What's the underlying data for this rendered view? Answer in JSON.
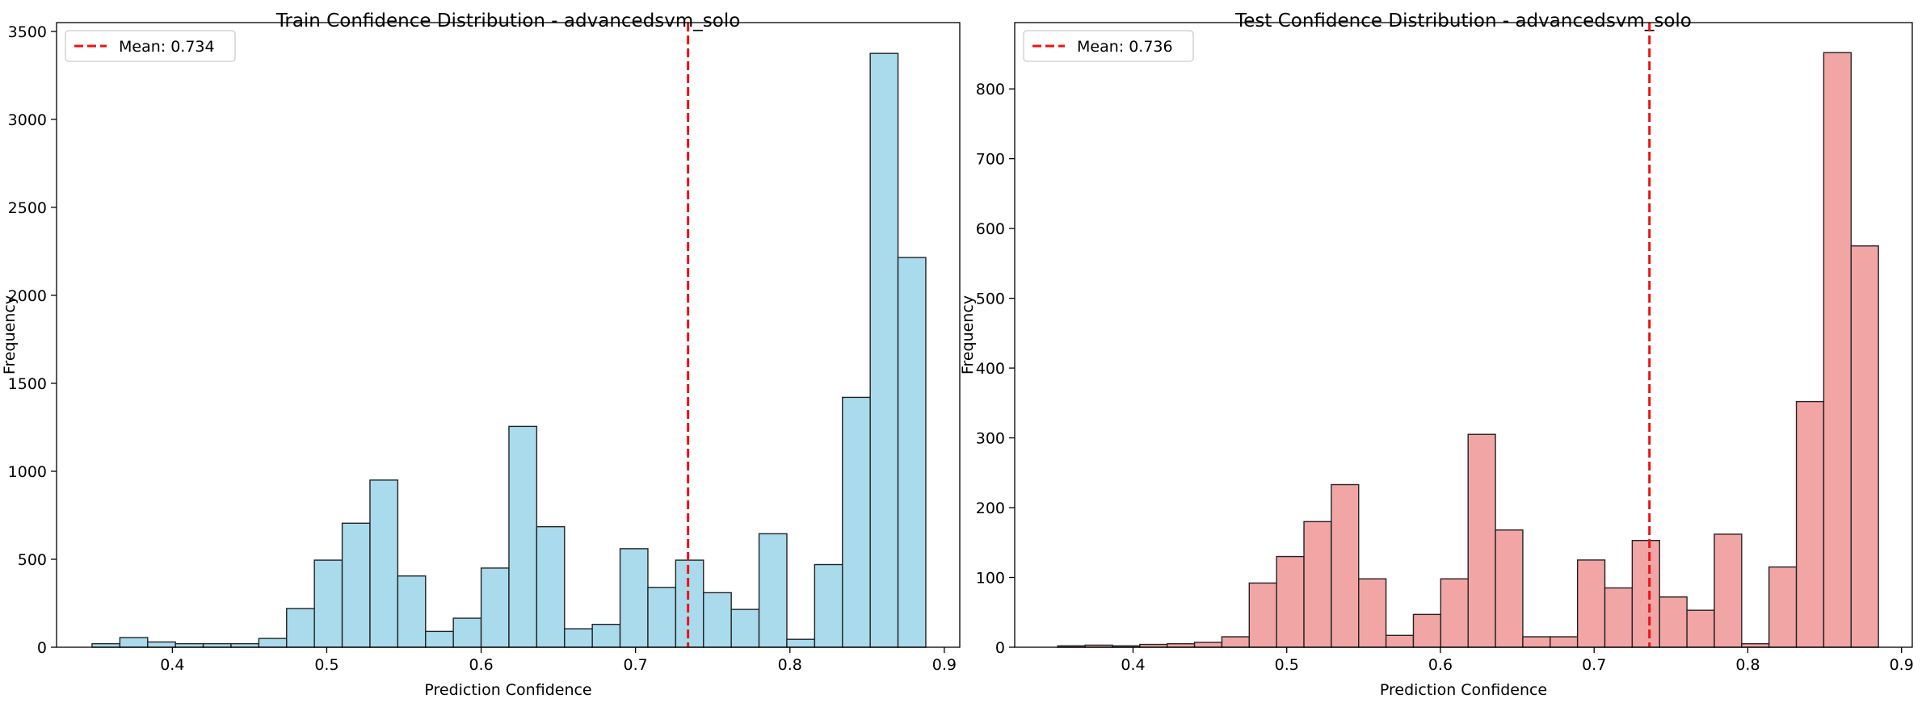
{
  "chart_data": [
    {
      "type": "bar",
      "title": "Train Confidence Distribution - advancedsvm_solo",
      "xlabel": "Prediction Confidence",
      "ylabel": "Frequency",
      "xlim": [
        0.325,
        0.91
      ],
      "ylim": [
        0,
        3550
      ],
      "xticks": [
        "0.4",
        "0.5",
        "0.6",
        "0.7",
        "0.8",
        "0.9"
      ],
      "yticks": [
        "0",
        "500",
        "1000",
        "1500",
        "2000",
        "2500",
        "3000",
        "3500"
      ],
      "bin_start": 0.348,
      "bin_width": 0.018,
      "values": [
        20,
        55,
        30,
        20,
        20,
        20,
        50,
        220,
        495,
        705,
        950,
        405,
        90,
        165,
        450,
        1255,
        685,
        105,
        130,
        560,
        340,
        495,
        310,
        215,
        645,
        45,
        470,
        1420,
        3375,
        2215
      ],
      "mean_line": {
        "value": 0.734,
        "label": "Mean: 0.734",
        "color": "#ee1111"
      },
      "bar_color": "#a9dbed",
      "edge_color": "#222222",
      "grid": false,
      "legend": "top-left"
    },
    {
      "type": "bar",
      "title": "Test Confidence Distribution - advancedsvm_solo",
      "xlabel": "Prediction Confidence",
      "ylabel": "Frequency",
      "xlim": [
        0.323,
        0.907
      ],
      "ylim": [
        0,
        895
      ],
      "xticks": [
        "0.4",
        "0.5",
        "0.6",
        "0.7",
        "0.8",
        "0.9"
      ],
      "yticks": [
        "0",
        "100",
        "200",
        "300",
        "400",
        "500",
        "600",
        "700",
        "800"
      ],
      "bin_start": 0.351,
      "bin_width": 0.0178,
      "values": [
        2,
        3,
        2,
        4,
        5,
        7,
        15,
        92,
        130,
        180,
        233,
        98,
        17,
        47,
        98,
        305,
        168,
        15,
        15,
        125,
        85,
        153,
        72,
        53,
        162,
        5,
        115,
        352,
        852,
        575
      ],
      "mean_line": {
        "value": 0.736,
        "label": "Mean: 0.736",
        "color": "#ee1111"
      },
      "bar_color": "#f2a5a5",
      "edge_color": "#222222",
      "grid": false,
      "legend": "top-left"
    }
  ]
}
